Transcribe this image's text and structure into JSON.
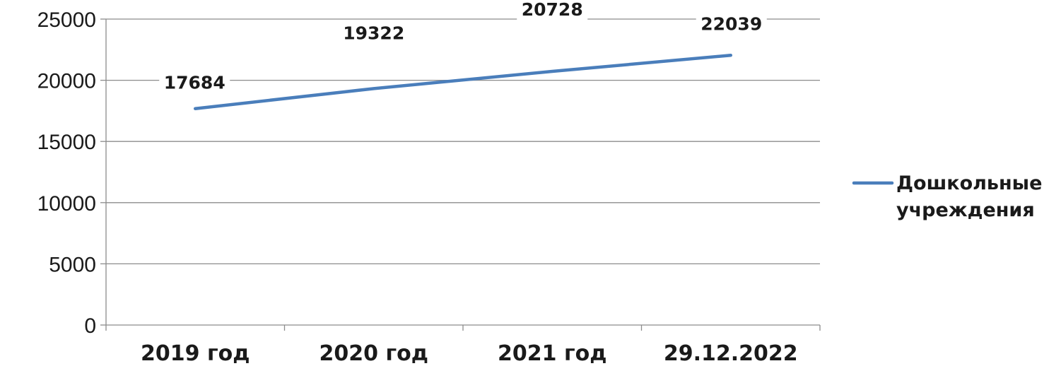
{
  "chart_data": {
    "type": "line",
    "categories": [
      "2019 год",
      "2020 год",
      "2021 год",
      "29.12.2022"
    ],
    "series": [
      {
        "name": "Дошкольные учреждения",
        "legend_lines": [
          "Дошкольные",
          "учреждения"
        ],
        "values": [
          17684,
          19322,
          20728,
          22039
        ],
        "data_labels": [
          "17684",
          "19322",
          "20728",
          "22039"
        ],
        "color": "#4a7ebb"
      }
    ],
    "y_ticks": [
      0,
      5000,
      10000,
      15000,
      20000,
      25000
    ],
    "y_tick_labels": [
      "0",
      "5000",
      "10000",
      "15000",
      "20000",
      "25000"
    ],
    "ylim": [
      0,
      25000
    ],
    "grid": true,
    "legend_position": "right",
    "title": "",
    "xlabel": "",
    "ylabel": ""
  }
}
